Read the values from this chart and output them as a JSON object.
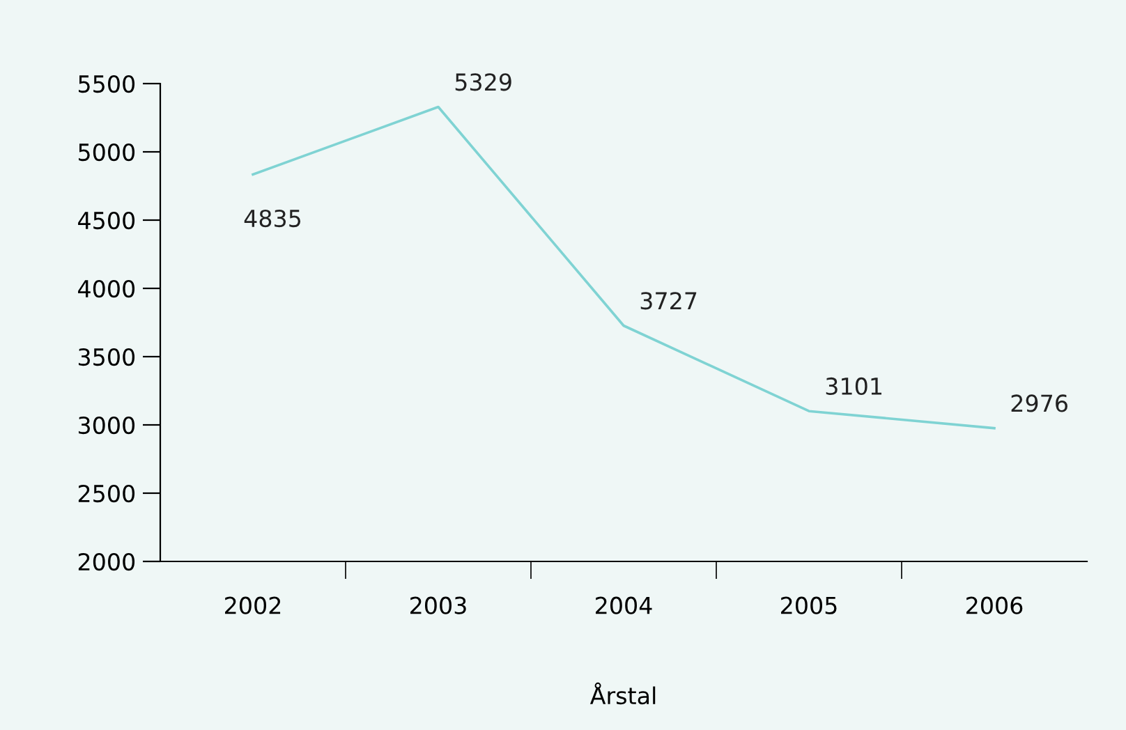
{
  "chart_data": {
    "type": "line",
    "xlabel": "Årstal",
    "categories": [
      "2002",
      "2003",
      "2004",
      "2005",
      "2006"
    ],
    "series": [
      {
        "color": "#7fd3d3",
        "values": [
          4835,
          5329,
          3727,
          3101,
          2976
        ]
      }
    ],
    "ylim": [
      2000,
      5500
    ],
    "yticks": [
      2000,
      2500,
      3000,
      3500,
      4000,
      4500,
      5000,
      5500
    ],
    "data_labels": true,
    "grid": false,
    "legend": false,
    "marker": "none",
    "line_style": "solid"
  }
}
